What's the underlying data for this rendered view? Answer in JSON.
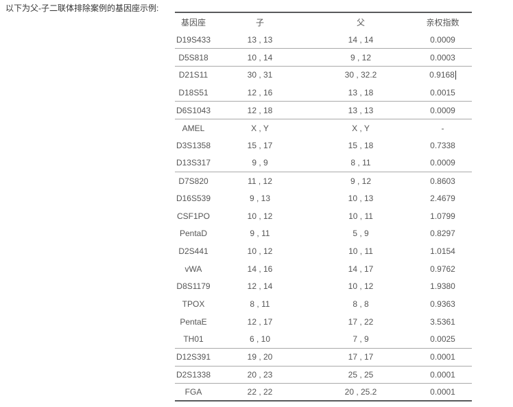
{
  "intro": {
    "text": "以下为父-子二联体排除案例的基因座示例:"
  },
  "table": {
    "headers": [
      {
        "key": "locus",
        "label": "基因座"
      },
      {
        "key": "child",
        "label": "子"
      },
      {
        "key": "father",
        "label": "父"
      },
      {
        "key": "pi",
        "label": "亲权指数"
      }
    ],
    "rows": [
      {
        "locus": "D19S433",
        "child": "13 , 13",
        "father": "14 , 14",
        "pi": "0.0009",
        "mismatch": true,
        "caret": false
      },
      {
        "locus": "D5S818",
        "child": "10 , 14",
        "father": "9 , 12",
        "pi": "0.0003",
        "mismatch": true,
        "caret": false
      },
      {
        "locus": "D21S11",
        "child": "30 , 31",
        "father": "30 , 32.2",
        "pi": "0.9168",
        "mismatch": false,
        "caret": true
      },
      {
        "locus": "D18S51",
        "child": "12 , 16",
        "father": "13 , 18",
        "pi": "0.0015",
        "mismatch": true,
        "caret": false
      },
      {
        "locus": "D6S1043",
        "child": "12 , 18",
        "father": "13 , 13",
        "pi": "0.0009",
        "mismatch": true,
        "caret": false
      },
      {
        "locus": "AMEL",
        "child": "X , Y",
        "father": "X , Y",
        "pi": "-",
        "mismatch": false,
        "caret": false
      },
      {
        "locus": "D3S1358",
        "child": "15 , 17",
        "father": "15 , 18",
        "pi": "0.7338",
        "mismatch": false,
        "caret": false
      },
      {
        "locus": "D13S317",
        "child": "9 , 9",
        "father": "8 , 11",
        "pi": "0.0009",
        "mismatch": true,
        "caret": false
      },
      {
        "locus": "D7S820",
        "child": "11 , 12",
        "father": "9 , 12",
        "pi": "0.8603",
        "mismatch": false,
        "caret": false
      },
      {
        "locus": "D16S539",
        "child": "9 , 13",
        "father": "10 , 13",
        "pi": "2.4679",
        "mismatch": false,
        "caret": false
      },
      {
        "locus": "CSF1PO",
        "child": "10 , 12",
        "father": "10 , 11",
        "pi": "1.0799",
        "mismatch": false,
        "caret": false
      },
      {
        "locus": "PentaD",
        "child": "9 , 11",
        "father": "5 , 9",
        "pi": "0.8297",
        "mismatch": false,
        "caret": false
      },
      {
        "locus": "D2S441",
        "child": "10 , 12",
        "father": "10 , 11",
        "pi": "1.0154",
        "mismatch": false,
        "caret": false
      },
      {
        "locus": "vWA",
        "child": "14 , 16",
        "father": "14 , 17",
        "pi": "0.9762",
        "mismatch": false,
        "caret": false
      },
      {
        "locus": "D8S1179",
        "child": "12 , 14",
        "father": "10 , 12",
        "pi": "1.9380",
        "mismatch": false,
        "caret": false
      },
      {
        "locus": "TPOX",
        "child": "8 , 11",
        "father": "8 , 8",
        "pi": "0.9363",
        "mismatch": false,
        "caret": false
      },
      {
        "locus": "PentaE",
        "child": "12 , 17",
        "father": "17 , 22",
        "pi": "3.5361",
        "mismatch": false,
        "caret": false
      },
      {
        "locus": "TH01",
        "child": "6 , 10",
        "father": "7 , 9",
        "pi": "0.0025",
        "mismatch": true,
        "caret": false
      },
      {
        "locus": "D12S391",
        "child": "19 , 20",
        "father": "17 , 17",
        "pi": "0.0001",
        "mismatch": true,
        "caret": false
      },
      {
        "locus": "D2S1338",
        "child": "20 , 23",
        "father": "25 , 25",
        "pi": "0.0001",
        "mismatch": true,
        "caret": false
      },
      {
        "locus": "FGA",
        "child": "22 , 22",
        "father": "20 , 25.2",
        "pi": "0.0001",
        "mismatch": true,
        "caret": false
      }
    ]
  },
  "colors": {
    "text": "#555555",
    "title": "#333333",
    "rule": "#a9a9a9",
    "frame": "#58595b",
    "caret": "#333333"
  }
}
